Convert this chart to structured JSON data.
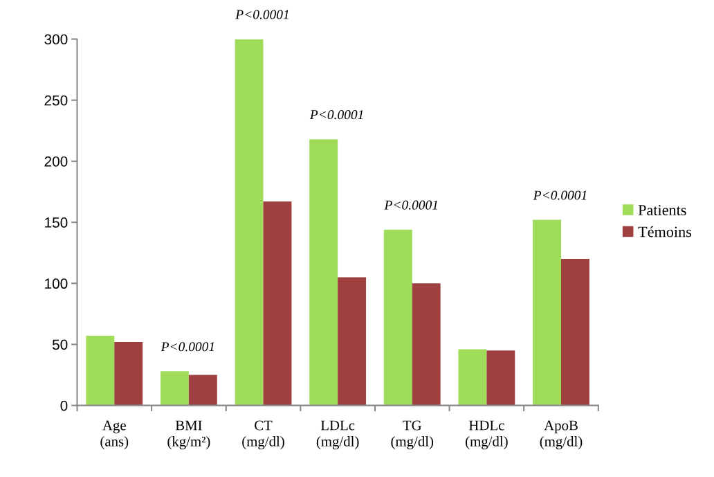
{
  "chart_data": {
    "type": "bar",
    "categories": [
      "Age\n(ans)",
      "BMI\n(kg/m²)",
      "CT\n(mg/dl)",
      "LDLc\n(mg/dl)",
      "TG\n(mg/dl)",
      "HDLc\n(mg/dl)",
      "ApoB\n(mg/dl)"
    ],
    "series": [
      {
        "name": "Patients",
        "color": "#9edc5a",
        "values": [
          57,
          28,
          300,
          218,
          144,
          46,
          152
        ]
      },
      {
        "name": "Témoins",
        "color": "#a04040",
        "values": [
          52,
          25,
          167,
          105,
          100,
          45,
          120
        ]
      }
    ],
    "ylim": [
      0,
      300
    ],
    "yticks": [
      0,
      50,
      100,
      150,
      200,
      250,
      300
    ],
    "grid": false,
    "legend": "right",
    "annotations": [
      {
        "text": "P<0.0001",
        "x": "BMI\n(kg/m²)",
        "y": 28
      },
      {
        "text": "P<0.0001",
        "x": "CT\n(mg/dl)",
        "y": 300
      },
      {
        "text": "P<0.0001",
        "x": "LDLc\n(mg/dl)",
        "y": 218
      },
      {
        "text": "P<0.0001",
        "x": "TG\n(mg/dl)",
        "y": 144
      },
      {
        "text": "P<0.0001",
        "x": "ApoB\n(mg/dl)",
        "y": 152
      }
    ]
  }
}
